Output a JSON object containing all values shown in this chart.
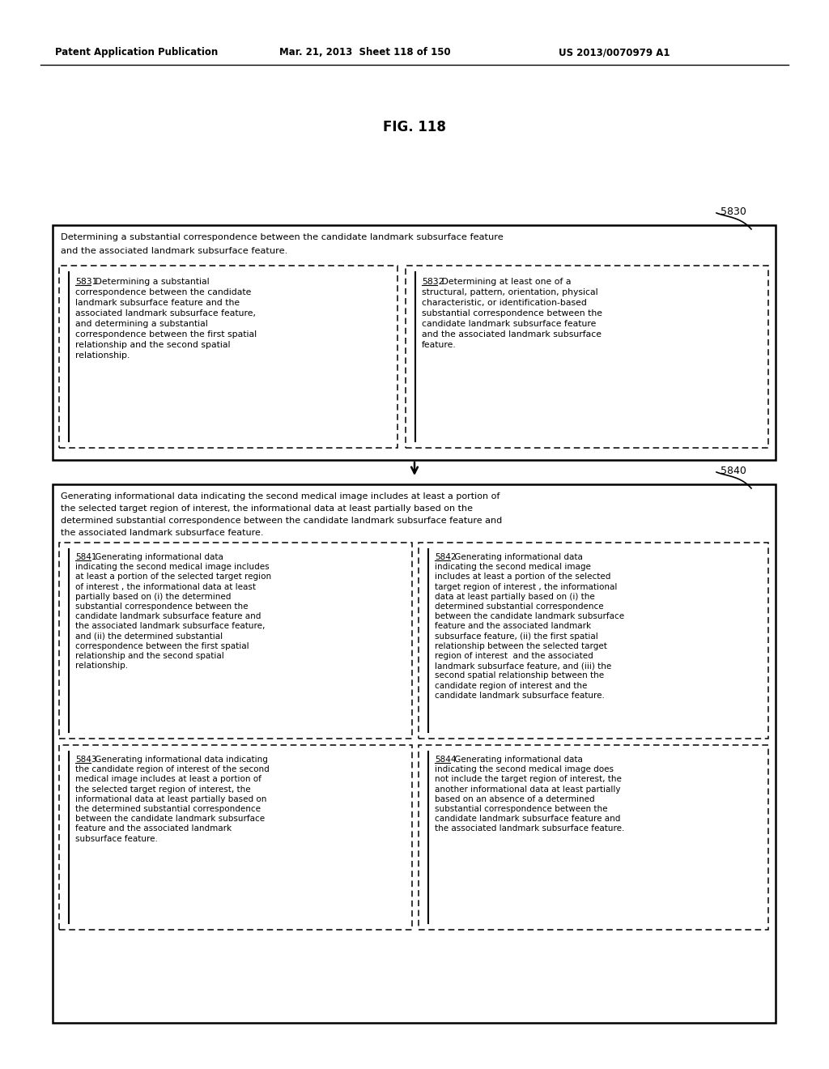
{
  "header_left": "Patent Application Publication",
  "header_mid": "Mar. 21, 2013  Sheet 118 of 150",
  "header_right": "US 2013/0070979 A1",
  "fig_title": "FIG. 118",
  "box5830_label": "5830",
  "box5830_title_l1": "Determining a substantial correspondence between the candidate landmark subsurface feature",
  "box5830_title_l2": "and the associated landmark subsurface feature.",
  "box5831_text": [
    "5831  Determining a substantial",
    "correspondence between the candidate",
    "landmark subsurface feature and the",
    "associated landmark subsurface feature,",
    "and determining a substantial",
    "correspondence between the first spatial",
    "relationship and the second spatial",
    "relationship."
  ],
  "box5832_text": [
    "5832  Determining at least one of a",
    "structural, pattern, orientation, physical",
    "characteristic, or identification-based",
    "substantial correspondence between the",
    "candidate landmark subsurface feature",
    "and the associated landmark subsurface",
    "feature."
  ],
  "box5840_label": "5840",
  "box5840_title": [
    "Generating informational data indicating the second medical image includes at least a portion of",
    "the selected target region of interest, the informational data at least partially based on the",
    "determined substantial correspondence between the candidate landmark subsurface feature and",
    "the associated landmark subsurface feature."
  ],
  "box5841_text": [
    "5841  Generating informational data",
    "indicating the second medical image includes",
    "at least a portion of the selected target region",
    "of interest , the informational data at least",
    "partially based on (i) the determined",
    "substantial correspondence between the",
    "candidate landmark subsurface feature and",
    "the associated landmark subsurface feature,",
    "and (ii) the determined substantial",
    "correspondence between the first spatial",
    "relationship and the second spatial",
    "relationship."
  ],
  "box5842_text": [
    "5842  Generating informational data",
    "indicating the second medical image",
    "includes at least a portion of the selected",
    "target region of interest , the informational",
    "data at least partially based on (i) the",
    "determined substantial correspondence",
    "between the candidate landmark subsurface",
    "feature and the associated landmark",
    "subsurface feature, (ii) the first spatial",
    "relationship between the selected target",
    "region of interest  and the associated",
    "landmark subsurface feature, and (iii) the",
    "second spatial relationship between the",
    "candidate region of interest and the",
    "candidate landmark subsurface feature."
  ],
  "box5843_text": [
    "5843  Generating informational data indicating",
    "the candidate region of interest of the second",
    "medical image includes at least a portion of",
    "the selected target region of interest, the",
    "informational data at least partially based on",
    "the determined substantial correspondence",
    "between the candidate landmark subsurface",
    "feature and the associated landmark",
    "subsurface feature."
  ],
  "box5844_text": [
    "5844  Generating informational data",
    "indicating the second medical image does",
    "not include the target region of interest, the",
    "another informational data at least partially",
    "based on an absence of a determined",
    "substantial correspondence between the",
    "candidate landmark subsurface feature and",
    "the associated landmark subsurface feature."
  ],
  "bg_color": "#ffffff"
}
